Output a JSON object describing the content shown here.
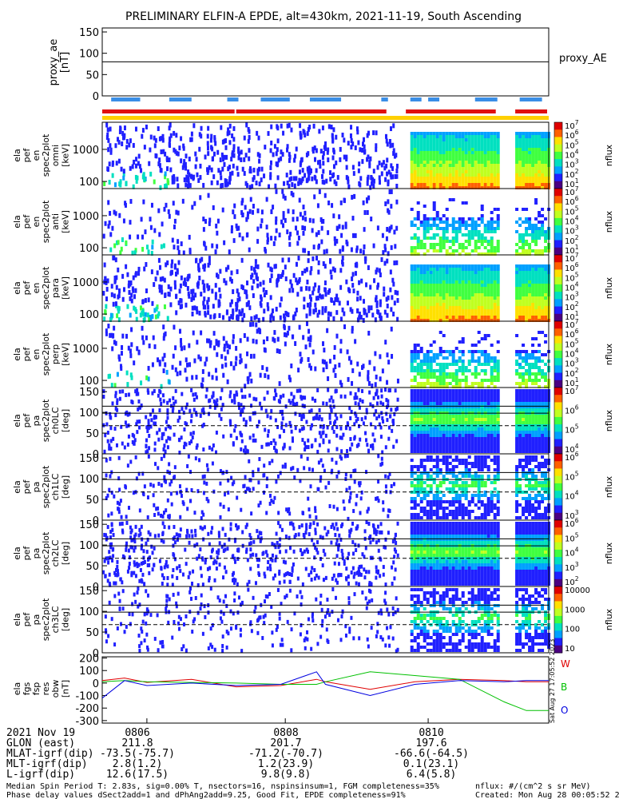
{
  "title": "PRELIMINARY ELFIN-A EPDE, alt=430km, 2021-11-19, South Ascending",
  "colors": {
    "blue_bar": "#3a8ee6",
    "red_bar": "#e01010",
    "yellow_bar": "#ffd000",
    "trace_red": "#e00000",
    "trace_green": "#00c000",
    "trace_blue": "#0000e0"
  },
  "panels": {
    "proxy": {
      "ylabel": [
        "proxy_ae",
        "[nT]"
      ],
      "ticks": [
        "150",
        "100",
        "50",
        "0"
      ],
      "legend": "proxy_AE"
    },
    "spectra": [
      {
        "ylabel": [
          "ela",
          "pef",
          "en",
          "spec2plot",
          "omni",
          "[keV]"
        ],
        "ticks": [
          "1000",
          "100"
        ]
      },
      {
        "ylabel": [
          "ela",
          "pef",
          "en",
          "spec2plot",
          "anti",
          "[keV]"
        ],
        "ticks": [
          "1000",
          "100"
        ]
      },
      {
        "ylabel": [
          "ela",
          "pef",
          "en",
          "spec2plot",
          "para",
          "[keV]"
        ],
        "ticks": [
          "1000",
          "100"
        ]
      },
      {
        "ylabel": [
          "ela",
          "pef",
          "en",
          "spec2plot",
          "perp",
          "[keV]"
        ],
        "ticks": [
          "1000",
          "100"
        ]
      }
    ],
    "pitch": [
      {
        "ylabel": [
          "ela",
          "pef",
          "pa",
          "spec2plot",
          "ch0LC",
          "[deg]"
        ]
      },
      {
        "ylabel": [
          "ela",
          "pef",
          "pa",
          "spec2plot",
          "ch1LC",
          "[deg]"
        ]
      },
      {
        "ylabel": [
          "ela",
          "pef",
          "pa",
          "spec2plot",
          "ch2LC",
          "[deg]"
        ]
      },
      {
        "ylabel": [
          "ela",
          "pef",
          "pa",
          "spec2plot",
          "ch3LC",
          "[deg]"
        ]
      }
    ],
    "pitch_ticks": [
      "150",
      "100",
      "50",
      "0"
    ],
    "fgs": {
      "ylabel": [
        "ela",
        "fgs",
        "fsp",
        "res",
        "obw",
        "[nT]"
      ],
      "ticks": [
        "200",
        "100",
        "0",
        "-100",
        "-200",
        "-300"
      ],
      "legend": [
        "W",
        "B",
        "O"
      ]
    },
    "colorbars": [
      {
        "labels": [
          "10^7",
          "10^6",
          "10^5",
          "10^4",
          "10^3",
          "10^2",
          "10^1"
        ],
        "unit": "nflux"
      },
      {
        "labels": [
          "10^7",
          "10^6",
          "10^5",
          "10^4",
          "10^3",
          "10^2",
          "10^1"
        ],
        "unit": "nflux"
      },
      {
        "labels": [
          "10^7",
          "10^6",
          "10^5",
          "10^4",
          "10^3",
          "10^2",
          "10^1"
        ],
        "unit": "nflux"
      },
      {
        "labels": [
          "10^7",
          "10^6",
          "10^5",
          "10^4",
          "10^3",
          "10^2",
          "10^1"
        ],
        "unit": "nflux"
      },
      {
        "labels": [
          "10^7",
          "10^6",
          "10^5",
          "10^4"
        ],
        "unit": "nflux"
      },
      {
        "labels": [
          "10^6",
          "10^5",
          "10^4",
          "10^3"
        ],
        "unit": "nflux"
      },
      {
        "labels": [
          "10^6",
          "10^5",
          "10^4",
          "10^3",
          "10^2"
        ],
        "unit": "nflux"
      },
      {
        "labels": [
          "10000",
          "1000",
          "100",
          "10"
        ],
        "unit": "nflux"
      }
    ],
    "side_stamp": "Sat Aug 27 17:05:52 2023"
  },
  "chart_data": {
    "type": "line",
    "title": "PRELIMINARY ELFIN-A EPDE, alt=430km, 2021-11-19, South Ascending",
    "proxy_ae": {
      "ylim": [
        0,
        150
      ],
      "value": 80
    },
    "energy_ylim": [
      60,
      7000
    ],
    "pitch_ylim": [
      0,
      160
    ],
    "pitch_lines": [
      115,
      98
    ],
    "pitch_dashed": 68,
    "fgs_ylim": [
      -320,
      210
    ],
    "fgs_x": [
      0,
      0.05,
      0.1,
      0.2,
      0.3,
      0.4,
      0.48,
      0.5,
      0.6,
      0.7,
      0.8,
      0.9,
      0.95,
      1.0
    ],
    "series": [
      {
        "name": "W",
        "values": [
          20,
          40,
          5,
          30,
          -30,
          -20,
          30,
          10,
          -50,
          10,
          30,
          20,
          10,
          10
        ]
      },
      {
        "name": "B",
        "values": [
          10,
          20,
          10,
          5,
          0,
          -10,
          -10,
          10,
          90,
          60,
          30,
          -150,
          -220,
          -220
        ]
      },
      {
        "name": "O",
        "values": [
          -120,
          20,
          -20,
          0,
          -20,
          -10,
          90,
          -10,
          -100,
          -10,
          20,
          10,
          20,
          20
        ]
      }
    ]
  },
  "footer": {
    "rows": [
      {
        "label": "2021 Nov 19",
        "v1": "0806",
        "v2": "0808",
        "v3": "0810"
      },
      {
        "label": "GLON (east)",
        "v1": "211.8",
        "v2": "201.7",
        "v3": "197.6"
      },
      {
        "label": "MLAT-igrf(dip)",
        "v1": "-73.5(-75.7)",
        "v2": "-71.2(-70.7)",
        "v3": "-66.6(-64.5)"
      },
      {
        "label": "MLT-igrf(dip)",
        "v1": "2.8(1.2)",
        "v2": "1.2(23.9)",
        "v3": "0.1(23.1)"
      },
      {
        "label": "L-igrf(dip)",
        "v1": "12.6(17.5)",
        "v2": "9.8(9.8)",
        "v3": "6.4(5.8)"
      }
    ],
    "note1": "Median Spin Period T: 2.83s, sig=0.00% T, nsectors=16, nspinsinsum=1, FGM completeness=35%",
    "note2": "Phase delay values dSect2add=1 and dPhAng2add=9.25, Good Fit, EPDE completeness=91%",
    "units": "nflux: #/(cm^2 s sr MeV)",
    "created": "Created: Mon Aug 28 00:05:52 2023"
  }
}
